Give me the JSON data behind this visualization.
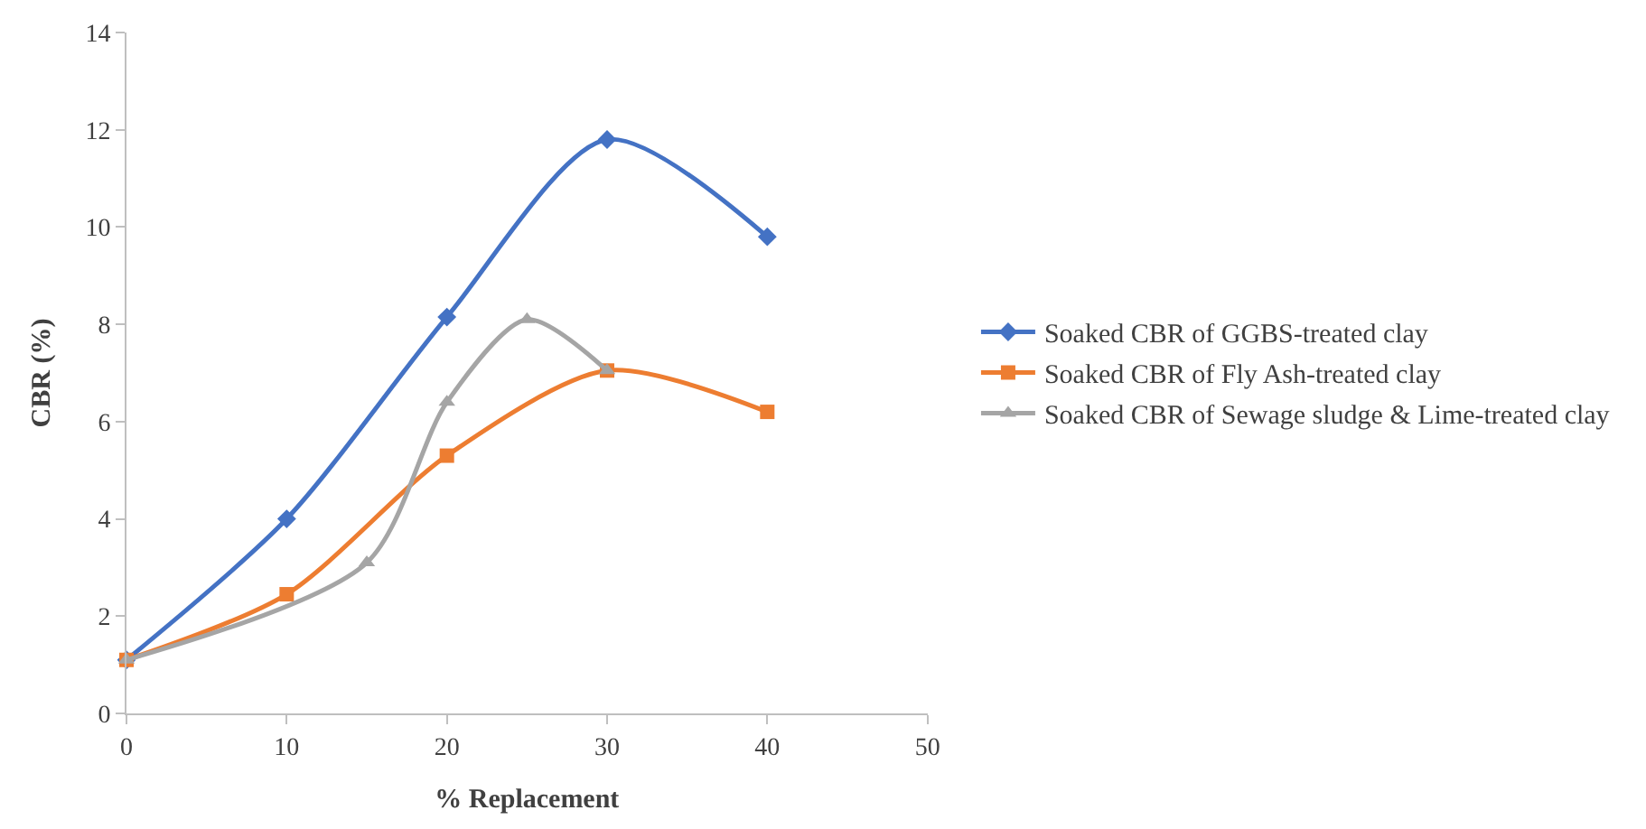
{
  "chart_data": {
    "type": "line",
    "xlabel": "% Replacement",
    "ylabel": "CBR (%)",
    "xlim": [
      0,
      50
    ],
    "xticks": [
      0,
      10,
      20,
      30,
      40,
      50
    ],
    "ylim": [
      0,
      14
    ],
    "yticks": [
      0,
      2,
      4,
      6,
      8,
      10,
      12,
      14
    ],
    "legend": "right",
    "line_style": "solid",
    "series": [
      {
        "name": "Soaked CBR of GGBS-treated clay",
        "color": "#4472c4",
        "marker": "diamond",
        "x": [
          0,
          10,
          20,
          30,
          40
        ],
        "values": [
          1.1,
          4.0,
          8.15,
          11.8,
          9.8
        ]
      },
      {
        "name": "Soaked CBR of Fly Ash-treated clay",
        "color": "#ed7d31",
        "marker": "square",
        "x": [
          0,
          10,
          20,
          30,
          40
        ],
        "values": [
          1.1,
          2.45,
          5.3,
          7.05,
          6.2
        ]
      },
      {
        "name": "Soaked CBR of Sewage sludge & Lime-treated clay",
        "color": "#a5a5a5",
        "marker": "triangle",
        "x": [
          0,
          15,
          20,
          25,
          30
        ],
        "values": [
          1.1,
          3.1,
          6.4,
          8.1,
          7.05
        ]
      }
    ]
  }
}
